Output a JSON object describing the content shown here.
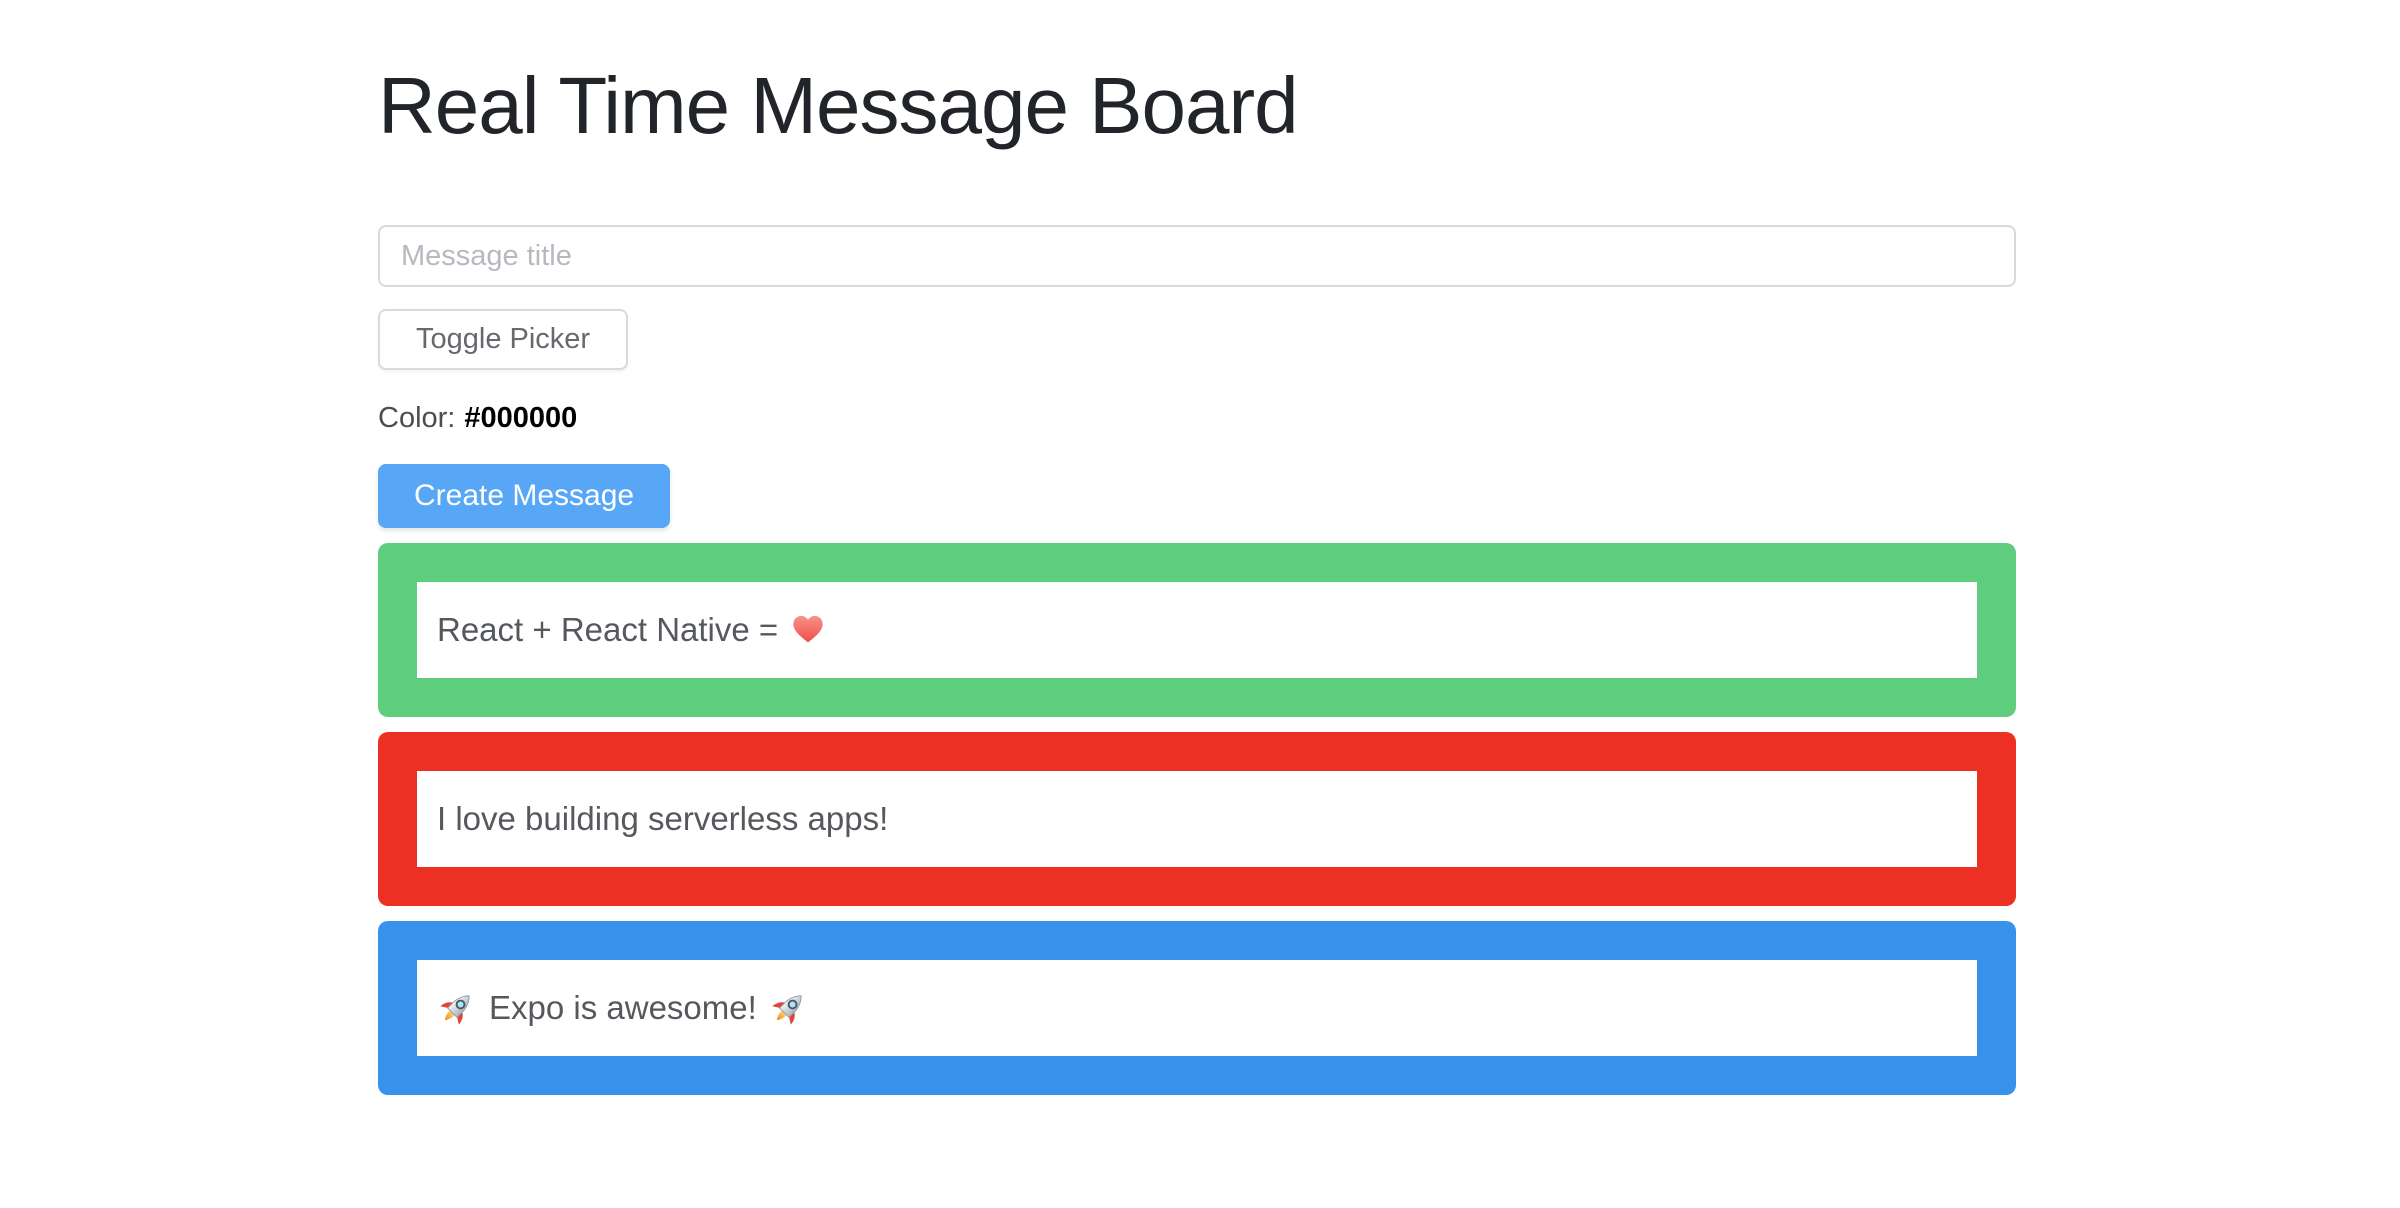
{
  "page": {
    "title": "Real Time Message Board"
  },
  "form": {
    "title_input": {
      "placeholder": "Message title",
      "value": ""
    },
    "toggle_picker_button": "Toggle Picker",
    "color_label": "Color:",
    "color_value": "#000000",
    "create_button": "Create Message"
  },
  "colors": {
    "create_button_bg": "#57A7F6",
    "card_green": "#5ECD7E",
    "card_red": "#EC3023",
    "card_blue": "#3793EA"
  },
  "messages": [
    {
      "text": "React + React Native =",
      "icon_after": "red-heart",
      "card_color": "#5ECD7E"
    },
    {
      "text": "I love building serverless apps!",
      "card_color": "#EC3023"
    },
    {
      "text": "Expo is awesome!",
      "icon_before": "rocket",
      "icon_after": "rocket",
      "card_color": "#3793EA"
    }
  ]
}
